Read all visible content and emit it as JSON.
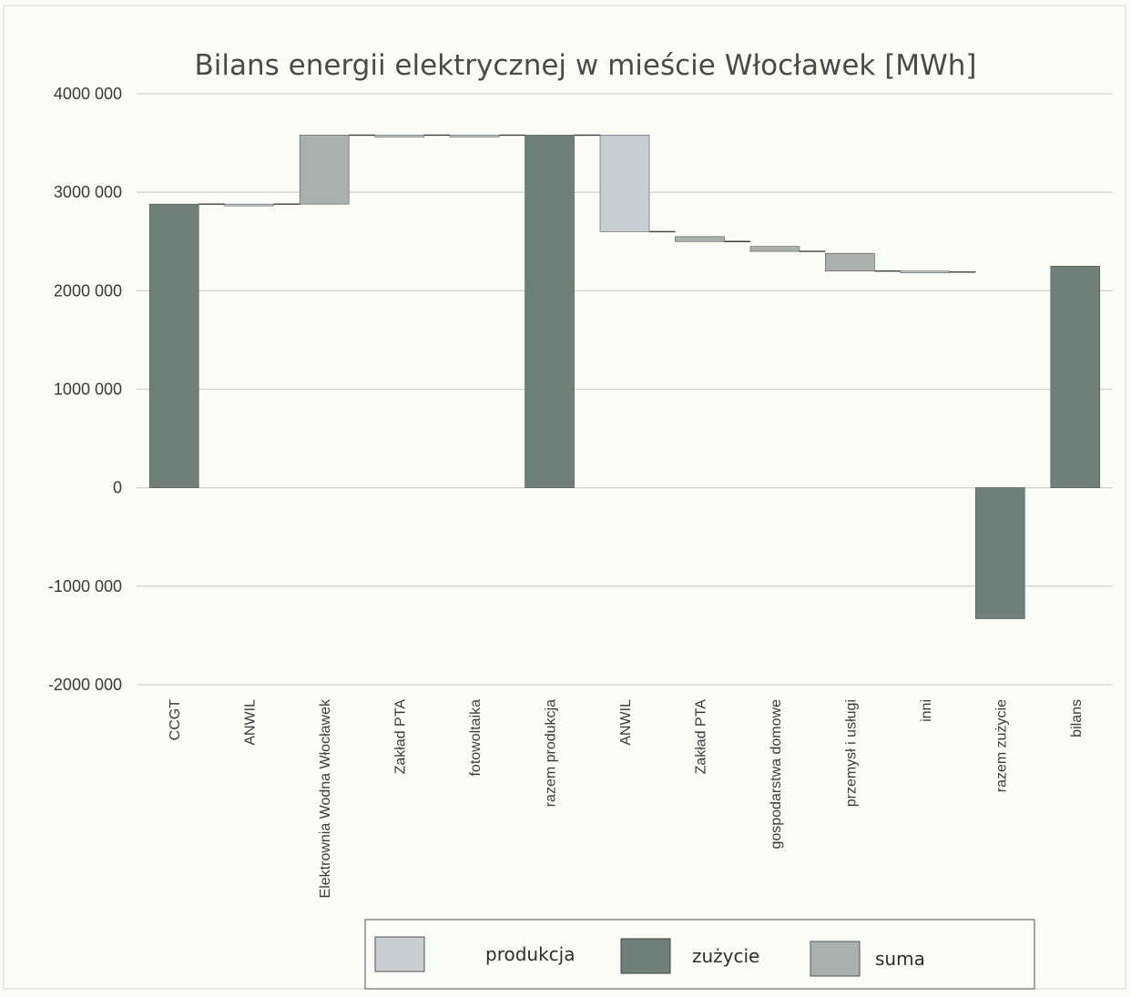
{
  "chart_data": {
    "type": "bar",
    "subtype": "waterfall",
    "title": "Bilans energii elektrycznej w mieście Włocławek [MWh]",
    "xlabel": "",
    "ylabel": "",
    "ylim": [
      -2000000,
      4000000
    ],
    "yticks": [
      4000000,
      3000000,
      2000000,
      1000000,
      0,
      -1000000,
      -2000000
    ],
    "ytick_labels": [
      "4000 000",
      "3000 000",
      "2000 000",
      "1000 000",
      "0",
      "-1000 000",
      "-2000 000"
    ],
    "grid": true,
    "legend_position": "bottom",
    "categories": [
      "CCGT",
      "ANWIL",
      "Elektrownia Wodna Włocławek",
      "Zakład PTA",
      "fotowoltaika",
      "razem produkcja",
      "ANWIL",
      "Zakład PTA",
      "gospodarstwa domowe",
      "przemysł i usługi",
      "inni",
      "razem zużycie",
      "bilans"
    ],
    "bars": [
      {
        "category": "CCGT",
        "role": "zużycie",
        "start": 0,
        "end": 2880000
      },
      {
        "category": "ANWIL",
        "role": "produkcja",
        "start": 2880000,
        "end": 2880000
      },
      {
        "category": "Elektrownia Wodna Włocławek",
        "role": "suma",
        "start": 2880000,
        "end": 3580000
      },
      {
        "category": "Zakład PTA",
        "role": "produkcja",
        "start": 3580000,
        "end": 3580000
      },
      {
        "category": "fotowoltaika",
        "role": "produkcja",
        "start": 3580000,
        "end": 3580000
      },
      {
        "category": "razem produkcja",
        "role": "zużycie",
        "start": 0,
        "end": 3580000
      },
      {
        "category": "ANWIL",
        "role": "produkcja",
        "start": 3580000,
        "end": 2600000
      },
      {
        "category": "Zakład PTA",
        "role": "suma",
        "start": 2550000,
        "end": 2500000
      },
      {
        "category": "gospodarstwa domowe",
        "role": "suma",
        "start": 2450000,
        "end": 2400000
      },
      {
        "category": "przemysł i usługi",
        "role": "suma",
        "start": 2380000,
        "end": 2200000
      },
      {
        "category": "inni",
        "role": "produkcja",
        "start": 2200000,
        "end": 2190000
      },
      {
        "category": "razem zużycie",
        "role": "zużycie",
        "start": 0,
        "end": -1330000
      },
      {
        "category": "bilans",
        "role": "zużycie",
        "start": 0,
        "end": 2250000
      }
    ],
    "legend": [
      {
        "label": "produkcja",
        "color": "#c7cdd1"
      },
      {
        "label": "zużycie",
        "color": "#6f7f79"
      },
      {
        "label": "suma",
        "color": "#a9b0ae"
      }
    ],
    "colors": {
      "produkcja": "#c7cdd1",
      "zużycie": "#6f7f79",
      "suma": "#a9b0ae",
      "connector": "#3f3f3f",
      "grid": "#d5d5d2"
    }
  }
}
